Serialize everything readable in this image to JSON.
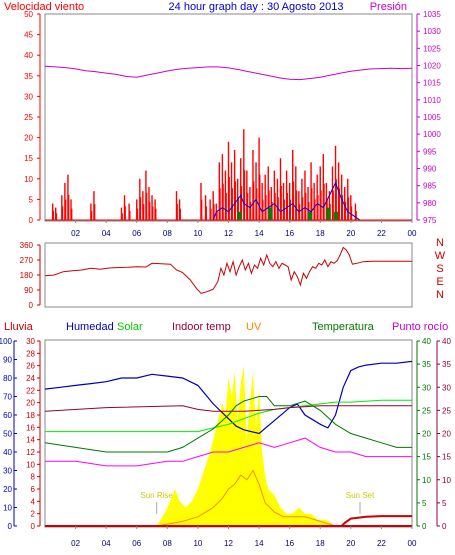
{
  "header": {
    "title": "24 hour graph day : 30 Agosto 2013",
    "left_label": "Velocidad viento",
    "right_label": "Presión"
  },
  "hours": [
    "02",
    "04",
    "06",
    "08",
    "10",
    "12",
    "14",
    "16",
    "18",
    "20",
    "22",
    "00"
  ],
  "colors": {
    "wind": "#ff0000",
    "gust": "#ff0000",
    "wind_avg": "#0000cc",
    "wind_green": "#008000",
    "pressure": "#cc00cc",
    "direction": "#cc0000",
    "rain": "#cc0000",
    "humidity": "#0000bb",
    "solar": "#00ee00",
    "indoor": "#990033",
    "uv": "#ff8800",
    "temperature": "#007700",
    "dewpoint": "#ff00ff",
    "sun_fill": "#ffff00",
    "sun_label": "#cccc00"
  },
  "wind_panel": {
    "left_ticks": [
      "0",
      "5",
      "10",
      "15",
      "20",
      "25",
      "30",
      "35",
      "40",
      "45",
      "50"
    ],
    "right_ticks": [
      "975",
      "980",
      "985",
      "990",
      "995",
      "1000",
      "1005",
      "1010",
      "1015",
      "1020",
      "1025",
      "1030",
      "1035"
    ],
    "wind_range": [
      0,
      50
    ],
    "pressure_range": [
      975,
      1035
    ],
    "pressure_series": [
      1019.8,
      1019.6,
      1019.4,
      1019.0,
      1018.5,
      1018.2,
      1017.8,
      1017.4,
      1016.8,
      1016.6,
      1017.2,
      1017.8,
      1018.4,
      1018.9,
      1019.2,
      1019.4,
      1019.6,
      1019.6,
      1019.3,
      1018.8,
      1018.2,
      1017.6,
      1017.0,
      1016.4,
      1016.0,
      1015.9,
      1016.2,
      1016.6,
      1017.2,
      1017.8,
      1018.3,
      1018.7,
      1019.0,
      1019.1,
      1019.2,
      1019.1,
      1019.2
    ],
    "gust_peaks": [
      [
        0.5,
        4
      ],
      [
        0.7,
        3
      ],
      [
        1.1,
        6
      ],
      [
        1.3,
        9
      ],
      [
        1.5,
        11
      ],
      [
        1.7,
        5
      ],
      [
        3.0,
        4
      ],
      [
        3.2,
        7
      ],
      [
        5.0,
        3
      ],
      [
        5.2,
        6
      ],
      [
        5.5,
        4
      ],
      [
        6.0,
        5
      ],
      [
        6.2,
        10
      ],
      [
        6.4,
        7
      ],
      [
        6.6,
        12
      ],
      [
        6.8,
        8
      ],
      [
        7.0,
        6
      ],
      [
        7.2,
        5
      ],
      [
        8.6,
        7
      ],
      [
        8.8,
        5
      ],
      [
        10.2,
        9
      ],
      [
        10.5,
        6
      ],
      [
        10.8,
        5
      ],
      [
        11.0,
        7
      ],
      [
        11.2,
        4
      ],
      [
        11.4,
        14
      ],
      [
        11.6,
        16
      ],
      [
        11.8,
        12
      ],
      [
        12.0,
        19
      ],
      [
        12.2,
        14
      ],
      [
        12.4,
        17
      ],
      [
        12.6,
        10
      ],
      [
        12.8,
        15
      ],
      [
        13.0,
        22
      ],
      [
        13.2,
        12
      ],
      [
        13.4,
        8
      ],
      [
        13.6,
        17
      ],
      [
        13.8,
        14
      ],
      [
        14.0,
        20
      ],
      [
        14.2,
        9
      ],
      [
        14.4,
        11
      ],
      [
        14.6,
        13
      ],
      [
        14.8,
        8
      ],
      [
        15.0,
        12
      ],
      [
        15.2,
        10
      ],
      [
        15.4,
        15
      ],
      [
        15.6,
        9
      ],
      [
        15.8,
        12
      ],
      [
        16.0,
        9
      ],
      [
        16.2,
        17
      ],
      [
        16.4,
        13
      ],
      [
        16.6,
        7
      ],
      [
        16.8,
        10
      ],
      [
        17.0,
        12
      ],
      [
        17.2,
        8
      ],
      [
        17.4,
        14
      ],
      [
        17.6,
        9
      ],
      [
        17.8,
        11
      ],
      [
        18.0,
        13
      ],
      [
        18.2,
        16
      ],
      [
        18.4,
        9
      ],
      [
        18.6,
        7
      ],
      [
        18.8,
        13
      ],
      [
        19.0,
        18
      ],
      [
        19.2,
        14
      ],
      [
        19.4,
        11
      ],
      [
        19.6,
        8
      ],
      [
        19.8,
        10
      ],
      [
        20.0,
        6
      ],
      [
        20.3,
        4
      ]
    ],
    "avg_series": [
      [
        0,
        0
      ],
      [
        11,
        0
      ],
      [
        11.2,
        2
      ],
      [
        11.6,
        3
      ],
      [
        12.0,
        2
      ],
      [
        12.4,
        4
      ],
      [
        12.8,
        6
      ],
      [
        13.0,
        4
      ],
      [
        13.4,
        3
      ],
      [
        13.8,
        5
      ],
      [
        14.2,
        2
      ],
      [
        14.6,
        3
      ],
      [
        15.0,
        4
      ],
      [
        15.4,
        2
      ],
      [
        15.8,
        3
      ],
      [
        16.2,
        4
      ],
      [
        16.6,
        2
      ],
      [
        17.0,
        3
      ],
      [
        17.4,
        2
      ],
      [
        17.8,
        4
      ],
      [
        18.2,
        3
      ],
      [
        18.6,
        6
      ],
      [
        19.0,
        9
      ],
      [
        19.4,
        5
      ],
      [
        19.8,
        2
      ],
      [
        20.2,
        1
      ],
      [
        20.6,
        0
      ],
      [
        24,
        0
      ]
    ],
    "green_bars": [
      [
        12.6,
        2
      ],
      [
        14.6,
        3
      ],
      [
        17.2,
        2
      ],
      [
        18.4,
        3
      ],
      [
        18.9,
        2
      ]
    ]
  },
  "direction_panel": {
    "ticks": [
      "0",
      "90",
      "180",
      "270",
      "360"
    ],
    "compass": [
      "N",
      "W",
      "S",
      "E",
      "N"
    ],
    "range": [
      0,
      360
    ],
    "series": [
      [
        0,
        175
      ],
      [
        0.6,
        180
      ],
      [
        1.2,
        200
      ],
      [
        1.8,
        205
      ],
      [
        2.4,
        210
      ],
      [
        3.0,
        220
      ],
      [
        3.6,
        215
      ],
      [
        4.2,
        222
      ],
      [
        4.8,
        225
      ],
      [
        5.4,
        226
      ],
      [
        6.0,
        230
      ],
      [
        6.6,
        228
      ],
      [
        7.0,
        250
      ],
      [
        7.6,
        248
      ],
      [
        8.2,
        245
      ],
      [
        8.6,
        210
      ],
      [
        9.0,
        195
      ],
      [
        9.5,
        150
      ],
      [
        9.9,
        100
      ],
      [
        10.2,
        70
      ],
      [
        10.6,
        80
      ],
      [
        11.0,
        95
      ],
      [
        11.3,
        140
      ],
      [
        11.5,
        220
      ],
      [
        11.7,
        180
      ],
      [
        11.9,
        250
      ],
      [
        12.1,
        200
      ],
      [
        12.3,
        260
      ],
      [
        12.5,
        180
      ],
      [
        12.7,
        230
      ],
      [
        12.9,
        270
      ],
      [
        13.1,
        210
      ],
      [
        13.3,
        250
      ],
      [
        13.5,
        190
      ],
      [
        13.7,
        240
      ],
      [
        13.9,
        220
      ],
      [
        14.1,
        280
      ],
      [
        14.3,
        240
      ],
      [
        14.5,
        300
      ],
      [
        14.7,
        250
      ],
      [
        14.9,
        230
      ],
      [
        15.1,
        260
      ],
      [
        15.3,
        220
      ],
      [
        15.5,
        250
      ],
      [
        15.7,
        240
      ],
      [
        15.9,
        230
      ],
      [
        16.1,
        150
      ],
      [
        16.3,
        200
      ],
      [
        16.5,
        170
      ],
      [
        16.7,
        120
      ],
      [
        16.9,
        190
      ],
      [
        17.1,
        160
      ],
      [
        17.3,
        200
      ],
      [
        17.5,
        230
      ],
      [
        17.7,
        220
      ],
      [
        17.9,
        250
      ],
      [
        18.1,
        240
      ],
      [
        18.3,
        270
      ],
      [
        18.5,
        230
      ],
      [
        18.7,
        260
      ],
      [
        18.9,
        250
      ],
      [
        19.1,
        265
      ],
      [
        19.3,
        300
      ],
      [
        19.5,
        345
      ],
      [
        19.7,
        330
      ],
      [
        19.9,
        300
      ],
      [
        20.1,
        245
      ],
      [
        20.4,
        250
      ],
      [
        20.8,
        260
      ],
      [
        21.4,
        262
      ],
      [
        22.2,
        263
      ],
      [
        23.0,
        262
      ],
      [
        24,
        262
      ]
    ]
  },
  "lower_panel": {
    "legend": {
      "rain": "Lluvia",
      "humidity": "Humedad",
      "solar": "Solar",
      "indoor": "Indoor temp",
      "uv": "UV",
      "temperature": "Temperatura",
      "dewpoint": "Punto rocío"
    },
    "humidity_ticks": [
      "0",
      "10",
      "20",
      "30",
      "40",
      "50",
      "60",
      "70",
      "80",
      "90",
      "100"
    ],
    "rain_ticks": [
      "0",
      "2",
      "4",
      "6",
      "8",
      "10",
      "12",
      "14",
      "16",
      "18",
      "20",
      "22",
      "24",
      "26",
      "28",
      "30"
    ],
    "temp_ticks_left": [
      "0",
      "5",
      "10",
      "15",
      "20",
      "25",
      "30",
      "35",
      "40"
    ],
    "temp_ticks_right": [
      "0",
      "5",
      "10",
      "15",
      "20",
      "25",
      "30",
      "35",
      "40"
    ],
    "sun_labels": [
      "Sun Rise",
      "Sun Set"
    ],
    "sunrise_hour": 7.3,
    "sunset_hour": 20.6,
    "humidity": [
      [
        0,
        74
      ],
      [
        1,
        75
      ],
      [
        2,
        76
      ],
      [
        3,
        77
      ],
      [
        4,
        78
      ],
      [
        5,
        80
      ],
      [
        6,
        80
      ],
      [
        7,
        82
      ],
      [
        8,
        81
      ],
      [
        9,
        80
      ],
      [
        10,
        76
      ],
      [
        11,
        66
      ],
      [
        12,
        58
      ],
      [
        12.5,
        54
      ],
      [
        13,
        52
      ],
      [
        14,
        50
      ],
      [
        15,
        57
      ],
      [
        16,
        64
      ],
      [
        16.5,
        66
      ],
      [
        17,
        60
      ],
      [
        18,
        55
      ],
      [
        18.5,
        53
      ],
      [
        19,
        60
      ],
      [
        19.5,
        75
      ],
      [
        20,
        84
      ],
      [
        20.5,
        86
      ],
      [
        21,
        87
      ],
      [
        22,
        88
      ],
      [
        23,
        88
      ],
      [
        24,
        89
      ]
    ],
    "solar": [
      [
        0,
        51
      ],
      [
        10,
        51
      ],
      [
        11,
        53
      ],
      [
        12,
        55
      ],
      [
        13,
        58
      ],
      [
        14,
        61
      ],
      [
        15,
        63
      ],
      [
        16,
        64
      ],
      [
        17,
        65
      ],
      [
        18,
        66
      ],
      [
        19,
        67
      ],
      [
        20,
        67
      ],
      [
        22,
        68
      ],
      [
        24,
        68
      ]
    ],
    "indoor": [
      [
        0,
        62
      ],
      [
        4,
        64
      ],
      [
        9,
        65
      ],
      [
        10,
        63
      ],
      [
        11,
        62
      ],
      [
        13,
        62
      ],
      [
        15,
        63
      ],
      [
        16,
        64
      ],
      [
        18,
        65
      ],
      [
        20,
        65
      ],
      [
        22,
        65
      ],
      [
        24,
        65
      ]
    ],
    "temperature": [
      [
        0,
        18
      ],
      [
        2,
        17
      ],
      [
        4,
        16
      ],
      [
        6,
        16
      ],
      [
        8,
        16
      ],
      [
        9,
        17
      ],
      [
        10,
        19
      ],
      [
        11,
        21
      ],
      [
        12,
        24
      ],
      [
        12.5,
        26
      ],
      [
        13,
        27
      ],
      [
        14,
        28
      ],
      [
        14.5,
        28
      ],
      [
        15,
        26
      ],
      [
        16,
        26
      ],
      [
        17,
        27
      ],
      [
        18,
        25
      ],
      [
        19,
        22
      ],
      [
        20,
        20
      ],
      [
        21,
        19
      ],
      [
        22,
        18
      ],
      [
        23,
        17
      ],
      [
        24,
        17
      ]
    ],
    "dewpoint": [
      [
        0,
        14
      ],
      [
        2,
        14
      ],
      [
        4,
        13
      ],
      [
        6,
        13
      ],
      [
        8,
        14
      ],
      [
        9,
        14
      ],
      [
        10,
        15
      ],
      [
        11,
        16
      ],
      [
        12,
        16
      ],
      [
        13,
        17
      ],
      [
        14,
        18
      ],
      [
        15,
        17
      ],
      [
        16,
        18
      ],
      [
        17,
        19
      ],
      [
        18,
        17
      ],
      [
        19,
        16
      ],
      [
        20,
        16
      ],
      [
        21,
        15
      ],
      [
        22,
        15
      ],
      [
        24,
        15
      ]
    ],
    "sun": [
      [
        7.3,
        0
      ],
      [
        7.8,
        2
      ],
      [
        8.2,
        4
      ],
      [
        8.5,
        6
      ],
      [
        8.8,
        4
      ],
      [
        9.2,
        3
      ],
      [
        9.6,
        4
      ],
      [
        10,
        6
      ],
      [
        10.4,
        9
      ],
      [
        10.8,
        12
      ],
      [
        11.2,
        16
      ],
      [
        11.6,
        20
      ],
      [
        11.8,
        18
      ],
      [
        12.0,
        24
      ],
      [
        12.2,
        21
      ],
      [
        12.4,
        25
      ],
      [
        12.6,
        17
      ],
      [
        12.8,
        23
      ],
      [
        13.0,
        26
      ],
      [
        13.2,
        14
      ],
      [
        13.4,
        20
      ],
      [
        13.6,
        25
      ],
      [
        13.8,
        16
      ],
      [
        14.0,
        22
      ],
      [
        14.2,
        12
      ],
      [
        14.4,
        8
      ],
      [
        14.6,
        6
      ],
      [
        15.0,
        5
      ],
      [
        15.4,
        3
      ],
      [
        15.8,
        2
      ],
      [
        16.2,
        2
      ],
      [
        16.6,
        3
      ],
      [
        17.0,
        2
      ],
      [
        17.4,
        2
      ],
      [
        17.8,
        1
      ],
      [
        18.4,
        1
      ],
      [
        19.0,
        0
      ]
    ],
    "uv": [
      [
        7.3,
        0
      ],
      [
        9,
        1
      ],
      [
        10,
        2
      ],
      [
        11,
        4
      ],
      [
        11.6,
        6
      ],
      [
        12,
        8
      ],
      [
        12.4,
        9
      ],
      [
        12.8,
        11
      ],
      [
        13.2,
        10
      ],
      [
        13.6,
        12
      ],
      [
        14,
        9
      ],
      [
        14.4,
        5
      ],
      [
        15,
        3
      ],
      [
        15.6,
        2
      ],
      [
        16.2,
        2
      ],
      [
        17,
        2
      ],
      [
        18,
        1
      ],
      [
        19,
        0
      ]
    ],
    "rain": [
      [
        0,
        0
      ],
      [
        19.4,
        0
      ],
      [
        19.6,
        0.5
      ],
      [
        20,
        1.2
      ],
      [
        21,
        1.5
      ],
      [
        22,
        1.6
      ],
      [
        24,
        1.6
      ]
    ]
  }
}
